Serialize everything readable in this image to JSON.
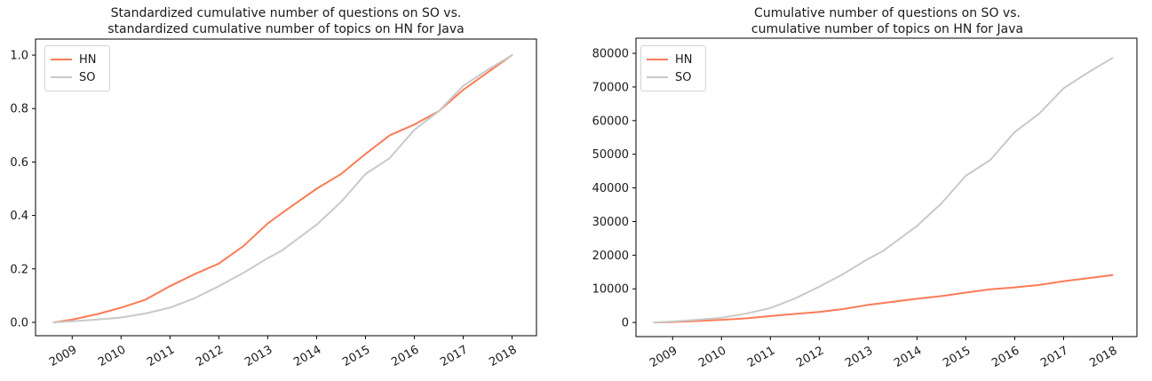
{
  "figure": {
    "background": "#ffffff",
    "text_color": "#1a1a1a",
    "spine_color": "#000000"
  },
  "chart_data": [
    {
      "type": "line",
      "title_line1": "Standardized cumulative number of questions on SO vs.",
      "title_line2": "standardized cumulative number of topics on HN for Java",
      "xlabel": "",
      "ylabel": "",
      "grid": false,
      "legend_position": "upper-left",
      "xlim": [
        2008.25,
        2018.5
      ],
      "ylim": [
        -0.05,
        1.06
      ],
      "xticks": [
        2009,
        2010,
        2011,
        2012,
        2013,
        2014,
        2015,
        2016,
        2017,
        2018
      ],
      "xtick_labels": [
        "2009",
        "2010",
        "2011",
        "2012",
        "2013",
        "2014",
        "2015",
        "2016",
        "2017",
        "2018"
      ],
      "yticks": [
        0.0,
        0.2,
        0.4,
        0.6,
        0.8,
        1.0
      ],
      "ytick_labels": [
        "0.0",
        "0.2",
        "0.4",
        "0.6",
        "0.8",
        "1.0"
      ],
      "x": [
        2008.62,
        2009,
        2009.5,
        2010,
        2010.5,
        2011,
        2011.5,
        2012,
        2012.5,
        2013,
        2013.3,
        2014,
        2014.5,
        2015,
        2015.5,
        2016,
        2016.5,
        2017,
        2017.5,
        2018
      ],
      "series": [
        {
          "name": "HN",
          "color": "#fb7c56",
          "values": [
            0.0,
            0.01,
            0.03,
            0.055,
            0.085,
            0.135,
            0.18,
            0.22,
            0.285,
            0.37,
            0.41,
            0.5,
            0.555,
            0.63,
            0.7,
            0.74,
            0.79,
            0.87,
            0.935,
            1.0
          ]
        },
        {
          "name": "SO",
          "color": "#c9c9c9",
          "values": [
            0.0,
            0.004,
            0.01,
            0.018,
            0.033,
            0.055,
            0.09,
            0.135,
            0.185,
            0.24,
            0.27,
            0.365,
            0.45,
            0.555,
            0.615,
            0.72,
            0.79,
            0.885,
            0.945,
            1.0
          ]
        }
      ]
    },
    {
      "type": "line",
      "title_line1": "Cumulative number of questions on SO vs.",
      "title_line2": "cumulative number of topics on HN for Java",
      "xlabel": "",
      "ylabel": "",
      "grid": false,
      "legend_position": "upper-left",
      "xlim": [
        2008.25,
        2018.5
      ],
      "ylim": [
        -4200,
        84500
      ],
      "xticks": [
        2009,
        2010,
        2011,
        2012,
        2013,
        2014,
        2015,
        2016,
        2017,
        2018
      ],
      "xtick_labels": [
        "2009",
        "2010",
        "2011",
        "2012",
        "2013",
        "2014",
        "2015",
        "2016",
        "2017",
        "2018"
      ],
      "yticks": [
        0,
        10000,
        20000,
        30000,
        40000,
        50000,
        60000,
        70000,
        80000
      ],
      "ytick_labels": [
        "0",
        "10000",
        "20000",
        "30000",
        "40000",
        "50000",
        "60000",
        "70000",
        "80000"
      ],
      "x": [
        2008.62,
        2009,
        2009.5,
        2010,
        2010.5,
        2011,
        2011.5,
        2012,
        2012.5,
        2013,
        2013.3,
        2014,
        2014.5,
        2015,
        2015.5,
        2016,
        2016.5,
        2017,
        2017.5,
        2018
      ],
      "series": [
        {
          "name": "HN",
          "color": "#fb7c56",
          "values": [
            0,
            140,
            420,
            780,
            1200,
            1900,
            2540,
            3100,
            4020,
            5220,
            5780,
            7050,
            7830,
            8880,
            9870,
            10430,
            11140,
            12270,
            13180,
            14100
          ]
        },
        {
          "name": "SO",
          "color": "#c9c9c9",
          "values": [
            0,
            300,
            800,
            1400,
            2600,
            4300,
            7100,
            10600,
            14500,
            18900,
            21200,
            28700,
            35400,
            43600,
            48300,
            56600,
            62100,
            69600,
            74300,
            78600
          ]
        }
      ]
    }
  ]
}
